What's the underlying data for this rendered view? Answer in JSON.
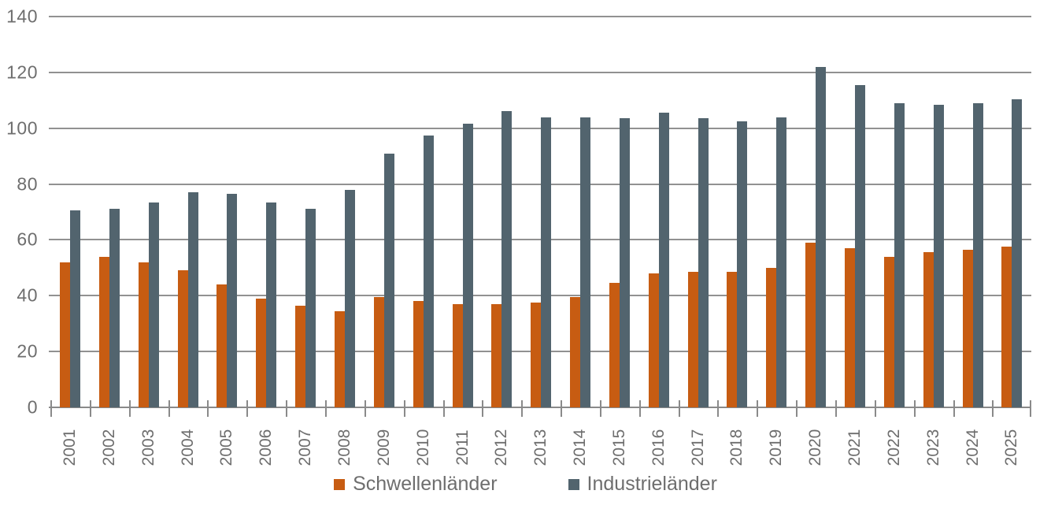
{
  "chart_data": {
    "type": "bar",
    "title": "",
    "xlabel": "",
    "ylabel": "",
    "categories": [
      "2001",
      "2002",
      "2003",
      "2004",
      "2005",
      "2006",
      "2007",
      "2008",
      "2009",
      "2010",
      "2011",
      "2012",
      "2013",
      "2014",
      "2015",
      "2016",
      "2017",
      "2018",
      "2019",
      "2020",
      "2021",
      "2022",
      "2023",
      "2024",
      "2025"
    ],
    "series": [
      {
        "name": "Schwellenländer",
        "color": "#C75C12",
        "values": [
          52,
          54,
          52,
          49,
          44,
          39,
          36.5,
          34.5,
          39.5,
          38,
          37,
          37,
          37.5,
          39.5,
          44.5,
          48,
          48.5,
          48.5,
          50,
          59,
          57,
          54,
          55.5,
          56.5,
          57.5
        ]
      },
      {
        "name": "Industrieländer",
        "color": "#52646E",
        "values": [
          70.5,
          71,
          73.5,
          77,
          76.5,
          73.5,
          71,
          78,
          91,
          97.5,
          101.5,
          106,
          104,
          104,
          103.5,
          105.5,
          103.5,
          102.5,
          104,
          122,
          115.5,
          109,
          108.5,
          109,
          110.5
        ]
      }
    ],
    "ylim": [
      0,
      140
    ],
    "yticks": [
      0,
      20,
      40,
      60,
      80,
      100,
      120,
      140
    ],
    "grid": "horizontal",
    "legend_position": "bottom-center",
    "axis_text_color": "#6e6e6e",
    "grid_color": "#919191"
  }
}
